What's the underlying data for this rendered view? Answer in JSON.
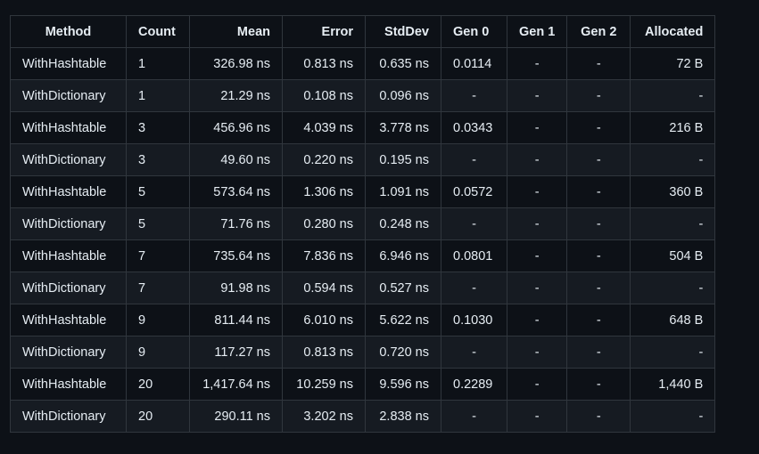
{
  "table": {
    "headers": [
      "Method",
      "Count",
      "Mean",
      "Error",
      "StdDev",
      "Gen 0",
      "Gen 1",
      "Gen 2",
      "Allocated"
    ],
    "rows": [
      [
        "WithHashtable",
        "1",
        "326.98 ns",
        "0.813 ns",
        "0.635 ns",
        "0.0114",
        "-",
        "-",
        "72 B"
      ],
      [
        "WithDictionary",
        "1",
        "21.29 ns",
        "0.108 ns",
        "0.096 ns",
        "-",
        "-",
        "-",
        "-"
      ],
      [
        "WithHashtable",
        "3",
        "456.96 ns",
        "4.039 ns",
        "3.778 ns",
        "0.0343",
        "-",
        "-",
        "216 B"
      ],
      [
        "WithDictionary",
        "3",
        "49.60 ns",
        "0.220 ns",
        "0.195 ns",
        "-",
        "-",
        "-",
        "-"
      ],
      [
        "WithHashtable",
        "5",
        "573.64 ns",
        "1.306 ns",
        "1.091 ns",
        "0.0572",
        "-",
        "-",
        "360 B"
      ],
      [
        "WithDictionary",
        "5",
        "71.76 ns",
        "0.280 ns",
        "0.248 ns",
        "-",
        "-",
        "-",
        "-"
      ],
      [
        "WithHashtable",
        "7",
        "735.64 ns",
        "7.836 ns",
        "6.946 ns",
        "0.0801",
        "-",
        "-",
        "504 B"
      ],
      [
        "WithDictionary",
        "7",
        "91.98 ns",
        "0.594 ns",
        "0.527 ns",
        "-",
        "-",
        "-",
        "-"
      ],
      [
        "WithHashtable",
        "9",
        "811.44 ns",
        "6.010 ns",
        "5.622 ns",
        "0.1030",
        "-",
        "-",
        "648 B"
      ],
      [
        "WithDictionary",
        "9",
        "117.27 ns",
        "0.813 ns",
        "0.720 ns",
        "-",
        "-",
        "-",
        "-"
      ],
      [
        "WithHashtable",
        "20",
        "1,417.64 ns",
        "10.259 ns",
        "9.596 ns",
        "0.2289",
        "-",
        "-",
        "1,440 B"
      ],
      [
        "WithDictionary",
        "20",
        "290.11 ns",
        "3.202 ns",
        "2.838 ns",
        "-",
        "-",
        "-",
        "-"
      ]
    ]
  },
  "colors": {
    "background": "#0d1117",
    "row_alt": "#161b22",
    "border": "#30363d",
    "text": "#e6edf3"
  }
}
